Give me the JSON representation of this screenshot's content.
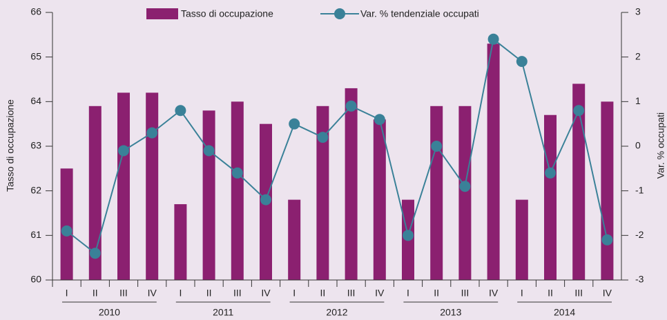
{
  "chart_data": {
    "type": "bar-line",
    "categories": [
      "I",
      "II",
      "III",
      "IV",
      "I",
      "II",
      "III",
      "IV",
      "I",
      "II",
      "III",
      "IV",
      "I",
      "II",
      "III",
      "IV",
      "I",
      "II",
      "III",
      "IV"
    ],
    "category_groups": [
      "2010",
      "2011",
      "2012",
      "2013",
      "2014"
    ],
    "y_label": "Tasso di occupazione",
    "y2_label": "Var. % occupati",
    "series": [
      {
        "name": "Tasso di occupazione",
        "type": "bar",
        "color": "#8b2070",
        "values": [
          62.5,
          63.9,
          64.2,
          64.2,
          61.7,
          63.8,
          64.0,
          63.5,
          61.8,
          63.9,
          64.3,
          63.6,
          61.8,
          63.9,
          63.9,
          65.3,
          61.8,
          63.7,
          64.4,
          64.0
        ]
      },
      {
        "name": "Var. % tendenziale occupati",
        "type": "line",
        "axis": "y2",
        "color": "#3a8198",
        "values": [
          -1.9,
          -2.4,
          -0.1,
          0.3,
          0.8,
          -0.1,
          -0.6,
          -1.2,
          0.5,
          0.2,
          0.9,
          0.6,
          -2.0,
          0.0,
          -0.9,
          2.4,
          1.9,
          -0.6,
          0.8,
          -2.1
        ]
      }
    ],
    "ylim": [
      60,
      66
    ],
    "yticks": [
      60,
      61,
      62,
      63,
      64,
      65,
      66
    ],
    "y2lim": [
      -3,
      3
    ],
    "y2ticks": [
      -3,
      -2,
      -1,
      0,
      1,
      2,
      3
    ],
    "legend": "top"
  }
}
